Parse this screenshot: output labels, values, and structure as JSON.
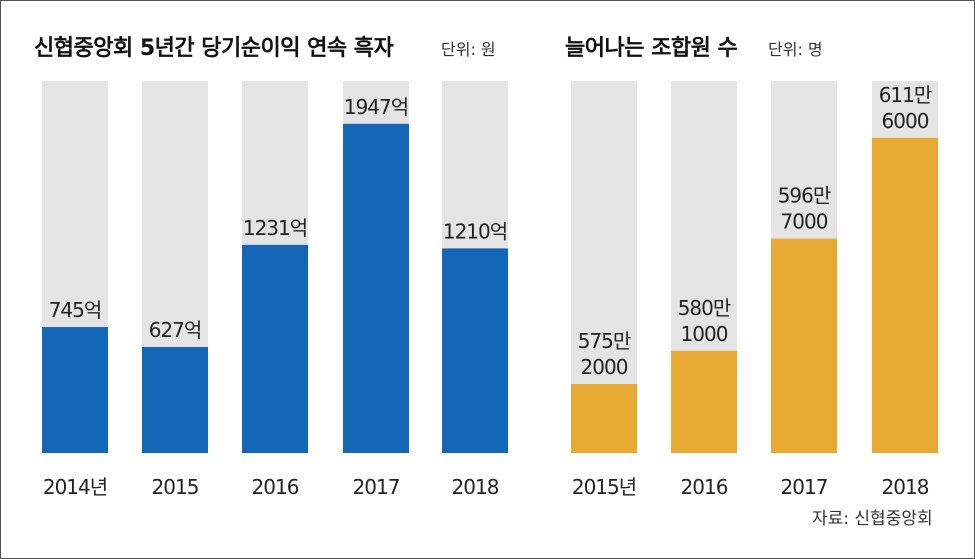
{
  "source": "자료: 신협중앙회",
  "colors": {
    "track": "#e4e4e4",
    "left_bar": "#1467b6",
    "right_bar": "#e8a933"
  },
  "chart_data": [
    {
      "type": "bar",
      "title": "신협중앙회 5년간 당기순이익 연속 흑자",
      "unit": "단위: 원",
      "categories": [
        "2014년",
        "2015",
        "2016",
        "2017",
        "2018"
      ],
      "values": [
        745,
        627,
        1231,
        1947,
        1210
      ],
      "value_labels": [
        [
          "745억"
        ],
        [
          "627억"
        ],
        [
          "1231억"
        ],
        [
          "1947억"
        ],
        [
          "1210억"
        ]
      ],
      "ylim": [
        0,
        2200
      ],
      "grid": false
    },
    {
      "type": "bar",
      "title": "늘어나는 조합원 수",
      "unit": "단위: 명",
      "categories": [
        "2015년",
        "2016",
        "2017",
        "2018"
      ],
      "values": [
        5752000,
        5801000,
        5967000,
        6116000
      ],
      "value_labels": [
        [
          "575만",
          "2000"
        ],
        [
          "580만",
          "1000"
        ],
        [
          "596만",
          "7000"
        ],
        [
          "611만",
          "6000"
        ]
      ],
      "ylim": [
        5650000,
        6200000
      ],
      "grid": false
    }
  ]
}
